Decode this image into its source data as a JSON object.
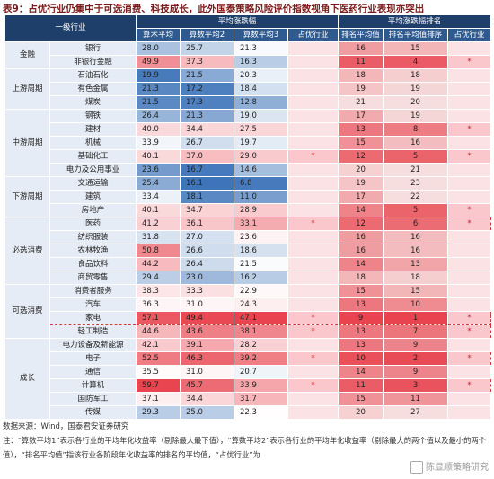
{
  "title": "表9：占优行业仍集中于可选消费、科技成长，此外国泰策略风险评价指数视角下医药行业表现亦突出",
  "headers": {
    "industry_group": "一级行业",
    "avg_return": "平均涨跌幅",
    "avg_rank": "平均涨跌幅排名",
    "columns": [
      "算术平均",
      "算数平均2",
      "算数平均3",
      "占优行业",
      "排名平均值",
      "排名平均值排序",
      "占优行业"
    ]
  },
  "rows": [
    {
      "sector": "金融",
      "industry": "银行",
      "v": [
        "28.0",
        "25.7",
        "21.3",
        "",
        "16",
        "15",
        ""
      ]
    },
    {
      "sector": "",
      "industry": "非银行金融",
      "v": [
        "49.9",
        "37.3",
        "16.3",
        "",
        "11",
        "4",
        "*"
      ]
    },
    {
      "sector": "上游周期",
      "industry": "石油石化",
      "v": [
        "19.9",
        "21.5",
        "20.3",
        "",
        "18",
        "18",
        ""
      ]
    },
    {
      "sector": "",
      "industry": "有色金属",
      "v": [
        "21.3",
        "17.2",
        "18.4",
        "",
        "19",
        "19",
        ""
      ]
    },
    {
      "sector": "",
      "industry": "煤炭",
      "v": [
        "21.5",
        "17.3",
        "12.8",
        "",
        "21",
        "20",
        ""
      ]
    },
    {
      "sector": "中游周期",
      "industry": "钢铁",
      "v": [
        "26.4",
        "21.3",
        "19.0",
        "",
        "17",
        "19",
        ""
      ]
    },
    {
      "sector": "",
      "industry": "建材",
      "v": [
        "40.0",
        "34.4",
        "27.5",
        "",
        "13",
        "8",
        "*"
      ]
    },
    {
      "sector": "",
      "industry": "机械",
      "v": [
        "33.9",
        "26.7",
        "19.7",
        "",
        "15",
        "16",
        ""
      ]
    },
    {
      "sector": "",
      "industry": "基础化工",
      "v": [
        "40.1",
        "37.0",
        "29.0",
        "*",
        "12",
        "5",
        "*"
      ]
    },
    {
      "sector": "",
      "industry": "电力及公用事业",
      "v": [
        "23.6",
        "16.7",
        "14.6",
        "",
        "20",
        "21",
        ""
      ]
    },
    {
      "sector": "下游周期",
      "industry": "交通运输",
      "v": [
        "25.4",
        "16.1",
        "6.8",
        "",
        "19",
        "23",
        ""
      ]
    },
    {
      "sector": "",
      "industry": "建筑",
      "v": [
        "33.4",
        "18.1",
        "11.0",
        "",
        "17",
        "22",
        ""
      ]
    },
    {
      "sector": "",
      "industry": "房地产",
      "v": [
        "40.1",
        "34.7",
        "28.9",
        "",
        "14",
        "5",
        "*"
      ]
    },
    {
      "sector": "必选消费",
      "industry": "医药",
      "v": [
        "41.2",
        "36.1",
        "33.1",
        "*",
        "12",
        "6",
        "*"
      ],
      "hl": true
    },
    {
      "sector": "",
      "industry": "纺织服装",
      "v": [
        "31.8",
        "27.0",
        "23.6",
        "",
        "16",
        "16",
        ""
      ]
    },
    {
      "sector": "",
      "industry": "农林牧渔",
      "v": [
        "50.8",
        "26.6",
        "18.6",
        "",
        "16",
        "16",
        ""
      ]
    },
    {
      "sector": "",
      "industry": "食品饮料",
      "v": [
        "44.2",
        "26.4",
        "21.5",
        "",
        "14",
        "13",
        ""
      ]
    },
    {
      "sector": "",
      "industry": "商贸零售",
      "v": [
        "29.4",
        "23.0",
        "16.2",
        "",
        "18",
        "18",
        ""
      ]
    },
    {
      "sector": "可选消费",
      "industry": "消费者服务",
      "v": [
        "38.3",
        "33.3",
        "22.9",
        "",
        "15",
        "15",
        ""
      ]
    },
    {
      "sector": "",
      "industry": "汽车",
      "v": [
        "36.3",
        "31.0",
        "24.3",
        "",
        "13",
        "10",
        ""
      ]
    },
    {
      "sector": "",
      "industry": "家电",
      "v": [
        "57.1",
        "49.4",
        "47.1",
        "*",
        "9",
        "1",
        "*"
      ],
      "hl": true
    },
    {
      "sector": "",
      "industry": "轻工制造",
      "v": [
        "44.6",
        "43.6",
        "38.1",
        "*",
        "13",
        "7",
        "*"
      ],
      "hl": true
    },
    {
      "sector": "成长",
      "industry": "电力设备及新能源",
      "v": [
        "42.1",
        "39.1",
        "28.2",
        "",
        "13",
        "9",
        ""
      ]
    },
    {
      "sector": "",
      "industry": "电子",
      "v": [
        "52.5",
        "46.3",
        "39.2",
        "*",
        "10",
        "2",
        "*"
      ],
      "hl": true
    },
    {
      "sector": "",
      "industry": "通信",
      "v": [
        "35.5",
        "31.0",
        "20.7",
        "",
        "14",
        "9",
        ""
      ]
    },
    {
      "sector": "",
      "industry": "计算机",
      "v": [
        "59.7",
        "45.7",
        "33.9",
        "*",
        "11",
        "3",
        "*"
      ],
      "hl": true
    },
    {
      "sector": "",
      "industry": "国防军工",
      "v": [
        "37.1",
        "34.4",
        "31.7",
        "",
        "15",
        "11",
        ""
      ]
    },
    {
      "sector": "",
      "industry": "传媒",
      "v": [
        "29.3",
        "25.0",
        "22.3",
        "",
        "20",
        "27",
        ""
      ]
    }
  ],
  "source": "数据来源：Wind，国泰君安证券研究",
  "note": "注：“算数平均1”表示各行业的平均年化收益率（剔除最大最下值），“算数平均2”表示各行业的平均年化收益率（剔除最大的两个值以及最小的两个值），“排名平均值”指该行业各阶段年化收益率的排名的平均值，“占优行业”为",
  "watermark": "陈显顺策略研究",
  "colors": {
    "high": "#e8434e",
    "mid": "#f5a9b0",
    "low_blue": "#2a66ad",
    "blue_light": "#b7c9e6"
  }
}
